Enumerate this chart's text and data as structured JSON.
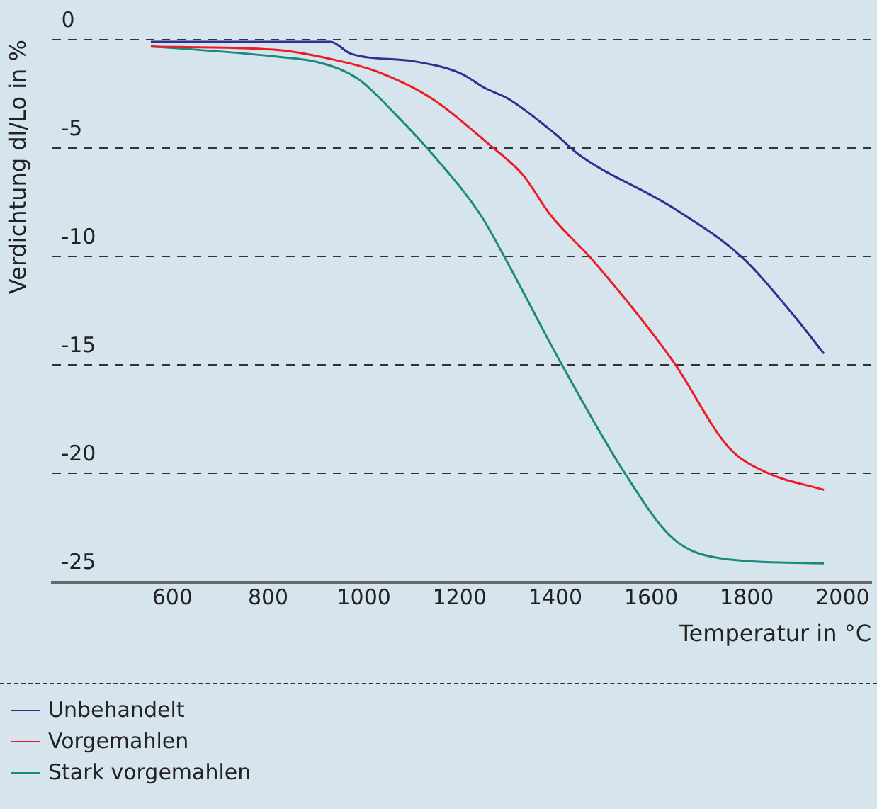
{
  "chart_data": {
    "type": "line",
    "xlabel": "Temperatur in °C",
    "ylabel": "Verdichtung dl/Lo in %",
    "xlim": [
      350,
      2060
    ],
    "ylim": [
      -25,
      0
    ],
    "xticks": [
      600,
      800,
      1000,
      1200,
      1400,
      1600,
      1800,
      2000
    ],
    "yticks": [
      0,
      -5,
      -10,
      -15,
      -20,
      -25
    ],
    "grid": "y",
    "legend": "bottom",
    "marker": "none",
    "line_style": "solid",
    "series": [
      {
        "name": "Unbehandelt",
        "color": "#2e3192",
        "x": [
          555,
          930,
          973,
          1106,
          1203,
          1253,
          1303,
          1400,
          1449,
          1645,
          1792,
          1890,
          1961
        ],
        "values": [
          -0.1,
          -0.1,
          -0.65,
          -1.0,
          -1.56,
          -2.23,
          -2.74,
          -4.35,
          -5.3,
          -7.74,
          -10.07,
          -12.5,
          -14.47
        ]
      },
      {
        "name": "Vorgemahlen",
        "color": "#ed1c24",
        "x": [
          555,
          812,
          929,
          1026,
          1144,
          1262,
          1332,
          1390,
          1479,
          1645,
          1762,
          1841,
          1961
        ],
        "values": [
          -0.32,
          -0.46,
          -0.88,
          -1.46,
          -2.74,
          -4.84,
          -6.23,
          -8.09,
          -10.19,
          -14.8,
          -18.79,
          -19.95,
          -20.75
        ]
      },
      {
        "name": "Stark vorgemahlen",
        "color": "#1a8a80",
        "x": [
          555,
          812,
          910,
          988,
          1066,
          1144,
          1244,
          1303,
          1409,
          1547,
          1645,
          1744,
          1961
        ],
        "values": [
          -0.3,
          -0.77,
          -1.07,
          -1.81,
          -3.44,
          -5.3,
          -8.09,
          -10.4,
          -14.8,
          -20.05,
          -22.98,
          -23.9,
          -24.14
        ]
      }
    ]
  }
}
